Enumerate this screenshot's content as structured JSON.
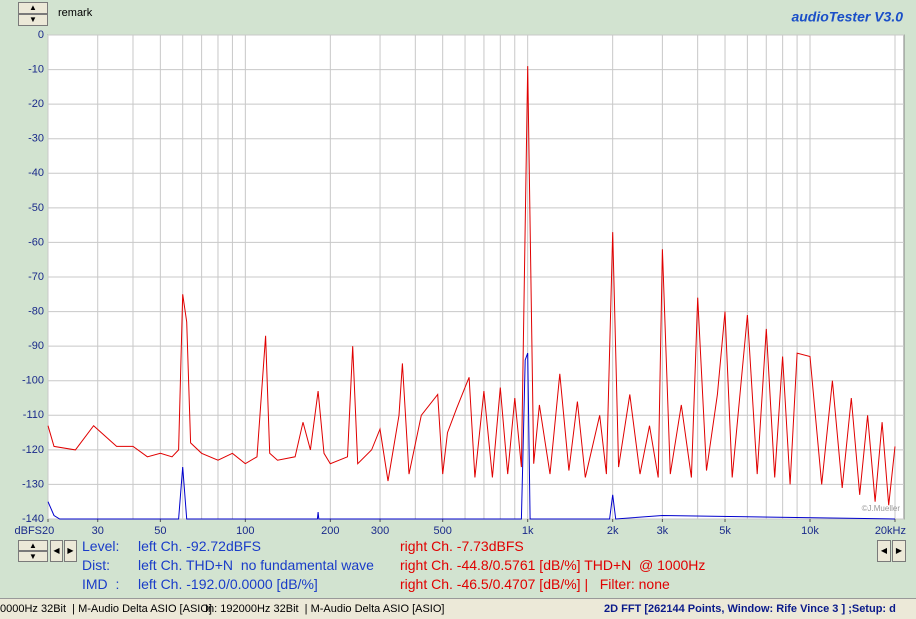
{
  "header": {
    "remark": "remark",
    "app_title": "audioTester  V3.0"
  },
  "chart_data": {
    "type": "line",
    "log_x": true,
    "grid": true,
    "y_unit_label": "dBFS",
    "watermark": "©J.Mueller",
    "xlim": [
      20,
      20000
    ],
    "ylim": [
      -140,
      0
    ],
    "xticks": [
      20,
      30,
      50,
      100,
      200,
      300,
      500,
      {
        "value": 1000,
        "label": "1k"
      },
      {
        "value": 2000,
        "label": "2k"
      },
      {
        "value": 3000,
        "label": "3k"
      },
      {
        "value": 5000,
        "label": "5k"
      },
      {
        "value": 10000,
        "label": "10k"
      },
      {
        "value": 20000,
        "label": "20kHz"
      }
    ],
    "xgrid": [
      20,
      30,
      40,
      50,
      60,
      70,
      80,
      90,
      100,
      200,
      300,
      400,
      500,
      600,
      700,
      800,
      900,
      1000,
      2000,
      3000,
      4000,
      5000,
      6000,
      7000,
      8000,
      9000,
      10000,
      20000
    ],
    "yticks": [
      0,
      -10,
      -20,
      -30,
      -40,
      -50,
      -60,
      -70,
      -80,
      -90,
      -100,
      -110,
      -120,
      -130,
      -140
    ],
    "series": [
      {
        "color": "#e00000",
        "x": [
          20,
          21,
          25,
          29,
          35,
          40,
          45,
          50,
          55,
          58,
          60,
          62,
          64,
          70,
          80,
          90,
          100,
          110,
          118,
          122,
          130,
          150,
          160,
          170,
          181,
          190,
          200,
          230,
          240,
          250,
          280,
          300,
          320,
          350,
          360,
          380,
          420,
          480,
          500,
          520,
          560,
          620,
          650,
          700,
          750,
          800,
          850,
          900,
          950,
          1000,
          1050,
          1100,
          1200,
          1300,
          1400,
          1500,
          1600,
          1800,
          1900,
          2000,
          2100,
          2300,
          2500,
          2700,
          2900,
          3000,
          3200,
          3500,
          3800,
          4000,
          4300,
          4700,
          5000,
          5300,
          6000,
          6500,
          7000,
          7500,
          8000,
          8500,
          9000,
          10000,
          11000,
          12000,
          13000,
          14000,
          15000,
          16000,
          17000,
          18000,
          19000,
          20000
        ],
        "values": [
          -113,
          -119,
          -120,
          -113,
          -119,
          -119,
          -122,
          -121,
          -122,
          -120,
          -75,
          -83,
          -118,
          -121,
          -123,
          -121,
          -124,
          -122,
          -87,
          -121,
          -123,
          -122,
          -112,
          -120,
          -103,
          -121,
          -124,
          -122,
          -90,
          -124,
          -120,
          -114,
          -129,
          -110,
          -95,
          -127,
          -110,
          -104,
          -127,
          -115,
          -108,
          -99,
          -128,
          -103,
          -128,
          -102,
          -127,
          -105,
          -125,
          -9,
          -124,
          -107,
          -127,
          -98,
          -126,
          -106,
          -128,
          -110,
          -127,
          -57,
          -125,
          -104,
          -127,
          -113,
          -128,
          -62,
          -127,
          -107,
          -128,
          -76,
          -126,
          -104,
          -80,
          -128,
          -81,
          -127,
          -85,
          -128,
          -93,
          -130,
          -92,
          -93,
          -130,
          -100,
          -131,
          -105,
          -133,
          -110,
          -135,
          -112,
          -136,
          -119
        ]
      },
      {
        "color": "#0000cc",
        "x": [
          20,
          21,
          22,
          40,
          58,
          60,
          62,
          180,
          181,
          182,
          950,
          980,
          1000,
          1020,
          1950,
          2000,
          2050,
          3000,
          20000
        ],
        "values": [
          -135,
          -139,
          -140,
          -140,
          -140,
          -125,
          -140,
          -140,
          -138,
          -140,
          -140,
          -94,
          -92,
          -140,
          -140,
          -133,
          -140,
          -139,
          -140
        ]
      }
    ]
  },
  "info": {
    "rows": [
      {
        "label": "Level:",
        "left": "left Ch. -92.72dBFS",
        "right": "right Ch. -7.73dBFS"
      },
      {
        "label": "Dist:",
        "left": "left Ch. THD+N  no fundamental wave",
        "right": "right Ch. -44.8/0.5761 [dB/%] THD+N  @ 1000Hz"
      },
      {
        "label": "IMD  :",
        "left": "left Ch. -192.0/0.0000 [dB/%]",
        "right": "right Ch. -46.5/0.4707 [dB/%] |   Filter: none"
      }
    ]
  },
  "status_bar": [
    "0000Hz 32Bit  | M-Audio Delta ASIO [ASIO]",
    "In: 192000Hz 32Bit  | M-Audio Delta ASIO [ASIO]",
    "2D FFT [262144 Points, Window: Rife Vince 3 ] ;Setup: d"
  ]
}
